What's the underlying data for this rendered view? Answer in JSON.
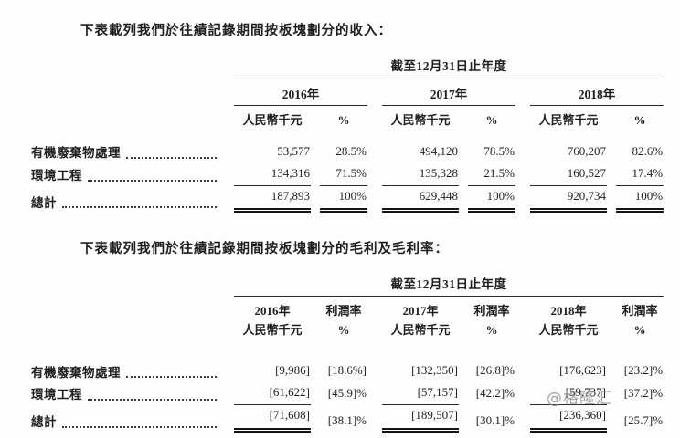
{
  "intro": {
    "revenue": "下表載列我們於往績記錄期間按板塊劃分的收入：",
    "gross_profit": "下表載列我們於往績記錄期間按板塊劃分的毛利及毛利率："
  },
  "watermark": "@格隆汇",
  "revenue_table": {
    "period_header": "截至12月31日止年度",
    "years": [
      "2016年",
      "2017年",
      "2018年"
    ],
    "unit_header": "人民幣千元",
    "pct_header": "%",
    "rows": [
      {
        "label": "有機廢棄物處理",
        "v": [
          "53,577",
          "28.5%",
          "494,120",
          "78.5%",
          "760,207",
          "82.6%"
        ]
      },
      {
        "label": "環境工程",
        "v": [
          "134,316",
          "71.5%",
          "135,328",
          "21.5%",
          "160,527",
          "17.4%"
        ]
      },
      {
        "label": "總計",
        "v": [
          "187,893",
          "100%",
          "629,448",
          "100%",
          "920,734",
          "100%"
        ]
      }
    ]
  },
  "gross_profit_table": {
    "period_header": "截至12月31日止年度",
    "years": [
      "2016年",
      "2017年",
      "2018年"
    ],
    "margin_header": "利潤率",
    "unit_header": "人民幣千元",
    "pct_header": "%",
    "rows": [
      {
        "label": "有機廢棄物處理",
        "v": [
          "[9,986]",
          "[18.6%]",
          "[132,350]",
          "[26.8]%",
          "[176,623]",
          "[23.2]%"
        ]
      },
      {
        "label": "環境工程",
        "v": [
          "[61,622]",
          "[45.9]%",
          "[57,157]",
          "[42.2]%",
          "[59,737]",
          "[37.2]%"
        ]
      },
      {
        "label": "總計",
        "v": [
          "[71,608]",
          "[38.1]%",
          "[189,507]",
          "[30.1]%",
          "[236,360]",
          "[25.7]%"
        ]
      }
    ]
  }
}
